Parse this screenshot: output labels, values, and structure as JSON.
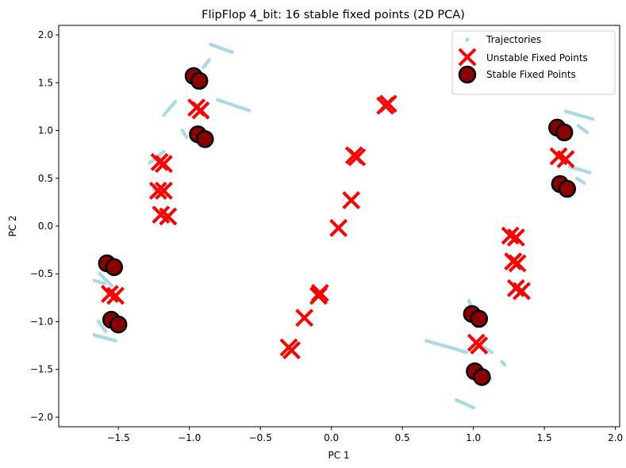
{
  "chart_data": {
    "type": "scatter",
    "title": "FlipFlop 4_bit: 16 stable fixed points (2D PCA)",
    "xlabel": "PC 1",
    "ylabel": "PC 2",
    "xlim": [
      -1.92,
      2.03
    ],
    "ylim": [
      -2.1,
      2.1
    ],
    "xticks": [
      -1.5,
      -1.0,
      -0.5,
      0.0,
      0.5,
      1.0,
      1.5,
      2.0
    ],
    "xtick_labels": [
      "−1.5",
      "−1.0",
      "−0.5",
      "0.0",
      "0.5",
      "1.0",
      "1.5",
      "2.0"
    ],
    "yticks": [
      -2.0,
      -1.5,
      -1.0,
      -0.5,
      0.0,
      0.5,
      1.0,
      1.5,
      2.0
    ],
    "ytick_labels": [
      "−2.0",
      "−1.5",
      "−1.0",
      "−0.5",
      "0.0",
      "0.5",
      "1.0",
      "1.5",
      "2.0"
    ],
    "grid": false,
    "legend_position": "top-right",
    "colors": {
      "trajectories": "#add8e6",
      "unstable": "#ff0000",
      "stable_fill": "#8b0000",
      "stable_edge": "#000000"
    },
    "series": [
      {
        "name": "Trajectories",
        "marker": "dot",
        "segments": [
          [
            [
              -1.63,
              -0.5
            ],
            [
              -1.55,
              -0.62
            ]
          ],
          [
            [
              -1.67,
              -0.57
            ],
            [
              -1.6,
              -0.6
            ]
          ],
          [
            [
              -1.67,
              -1.14
            ],
            [
              -1.52,
              -1.2
            ]
          ],
          [
            [
              -1.64,
              -1.0
            ],
            [
              -1.59,
              -1.1
            ]
          ],
          [
            [
              -1.18,
              0.78
            ],
            [
              -1.28,
              0.66
            ]
          ],
          [
            [
              -1.25,
              0.38
            ],
            [
              -1.15,
              0.32
            ]
          ],
          [
            [
              -1.2,
              0.1
            ],
            [
              -1.13,
              0.13
            ]
          ],
          [
            [
              -1.1,
              1.3
            ],
            [
              -1.18,
              1.16
            ]
          ],
          [
            [
              -0.98,
              1.5
            ],
            [
              -0.93,
              1.57
            ]
          ],
          [
            [
              -0.85,
              1.9
            ],
            [
              -0.7,
              1.82
            ]
          ],
          [
            [
              -0.86,
              1.74
            ],
            [
              -0.9,
              1.66
            ]
          ],
          [
            [
              -0.8,
              1.32
            ],
            [
              -0.58,
              1.21
            ]
          ],
          [
            [
              -0.88,
              0.84
            ],
            [
              -0.95,
              0.98
            ]
          ],
          [
            [
              -1.05,
              1.0
            ],
            [
              -1.02,
              0.93
            ]
          ],
          [
            [
              0.67,
              -1.2
            ],
            [
              0.95,
              -1.32
            ]
          ],
          [
            [
              0.97,
              -0.78
            ],
            [
              1.02,
              -1.05
            ]
          ],
          [
            [
              0.88,
              -1.82
            ],
            [
              1.0,
              -1.9
            ]
          ],
          [
            [
              1.05,
              -1.25
            ],
            [
              1.13,
              -1.32
            ]
          ],
          [
            [
              1.05,
              -1.55
            ],
            [
              1.12,
              -1.6
            ]
          ],
          [
            [
              1.2,
              -1.42
            ],
            [
              1.22,
              -1.45
            ]
          ],
          [
            [
              1.65,
              1.2
            ],
            [
              1.84,
              1.12
            ]
          ],
          [
            [
              1.74,
              1.05
            ],
            [
              1.8,
              0.98
            ]
          ],
          [
            [
              1.68,
              0.62
            ],
            [
              1.82,
              0.56
            ]
          ],
          [
            [
              1.73,
              0.5
            ],
            [
              1.78,
              0.45
            ]
          ]
        ]
      },
      {
        "name": "Unstable Fixed Points",
        "marker": "x",
        "points": [
          [
            -1.21,
            0.67
          ],
          [
            -1.18,
            0.65
          ],
          [
            -1.22,
            0.37
          ],
          [
            -1.18,
            0.37
          ],
          [
            -1.2,
            0.12
          ],
          [
            -1.15,
            0.1
          ],
          [
            -0.95,
            1.24
          ],
          [
            -0.92,
            1.21
          ],
          [
            -1.56,
            -0.71
          ],
          [
            -1.52,
            -0.73
          ],
          [
            0.4,
            1.28
          ],
          [
            0.38,
            1.26
          ],
          [
            0.18,
            0.72
          ],
          [
            0.16,
            0.74
          ],
          [
            0.14,
            0.27
          ],
          [
            0.05,
            -0.02
          ],
          [
            -0.08,
            -0.7
          ],
          [
            -0.09,
            -0.73
          ],
          [
            -0.19,
            -0.96
          ],
          [
            -0.3,
            -1.27
          ],
          [
            -0.28,
            -1.3
          ],
          [
            1.26,
            -0.1
          ],
          [
            1.3,
            -0.12
          ],
          [
            1.28,
            -0.37
          ],
          [
            1.31,
            -0.39
          ],
          [
            1.3,
            -0.65
          ],
          [
            1.34,
            -0.68
          ],
          [
            1.02,
            -1.22
          ],
          [
            1.04,
            -1.25
          ],
          [
            1.6,
            0.73
          ],
          [
            1.65,
            0.7
          ]
        ]
      },
      {
        "name": "Stable Fixed Points",
        "marker": "circle",
        "points": [
          [
            -1.58,
            -0.39
          ],
          [
            -1.53,
            -0.43
          ],
          [
            -1.55,
            -0.98
          ],
          [
            -1.5,
            -1.03
          ],
          [
            -0.97,
            1.57
          ],
          [
            -0.93,
            1.52
          ],
          [
            -0.94,
            0.96
          ],
          [
            -0.89,
            0.91
          ],
          [
            0.99,
            -0.92
          ],
          [
            1.04,
            -0.97
          ],
          [
            1.01,
            -1.52
          ],
          [
            1.06,
            -1.58
          ],
          [
            1.59,
            1.03
          ],
          [
            1.64,
            0.98
          ],
          [
            1.61,
            0.44
          ],
          [
            1.66,
            0.39
          ]
        ]
      }
    ]
  }
}
